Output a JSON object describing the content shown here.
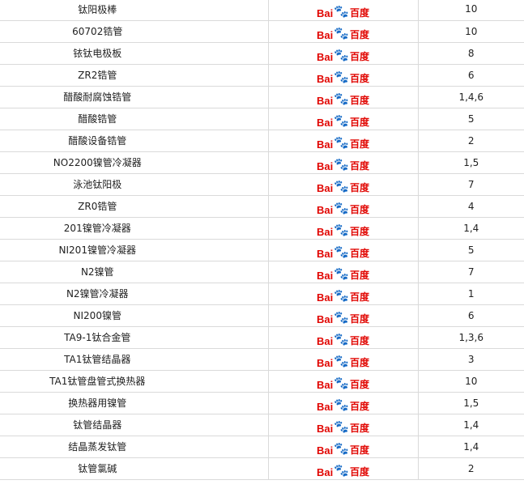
{
  "logo": {
    "text_latin": "Bai",
    "text_cn": "百度",
    "icon": "baidu-paw-icon",
    "colors": {
      "red": "#e10602",
      "blue": "#2932e1"
    }
  },
  "rows": [
    {
      "name": "钛阳极棒",
      "value": "10"
    },
    {
      "name": "60702锆管",
      "value": "10"
    },
    {
      "name": "铱钛电极板",
      "value": "8"
    },
    {
      "name": "ZR2锆管",
      "value": "6"
    },
    {
      "name": "醋酸耐腐蚀锆管",
      "value": "1,4,6"
    },
    {
      "name": "醋酸锆管",
      "value": "5"
    },
    {
      "name": "醋酸设备锆管",
      "value": "2"
    },
    {
      "name": "NO2200镍管冷凝器",
      "value": "1,5"
    },
    {
      "name": "泳池钛阳极",
      "value": "7"
    },
    {
      "name": "ZR0锆管",
      "value": "4"
    },
    {
      "name": "201镍管冷凝器",
      "value": "1,4"
    },
    {
      "name": "NI201镍管冷凝器",
      "value": "5"
    },
    {
      "name": "N2镍管",
      "value": "7"
    },
    {
      "name": "N2镍管冷凝器",
      "value": "1"
    },
    {
      "name": "NI200镍管",
      "value": "6"
    },
    {
      "name": "TA9-1钛合金管",
      "value": "1,3,6"
    },
    {
      "name": "TA1钛管结晶器",
      "value": "3"
    },
    {
      "name": "TA1钛管盘管式换热器",
      "value": "10"
    },
    {
      "name": "换热器用镍管",
      "value": "1,5"
    },
    {
      "name": "钛管结晶器",
      "value": "1,4"
    },
    {
      "name": "结晶蒸发钛管",
      "value": "1,4"
    },
    {
      "name": "钛管氯碱",
      "value": "2"
    }
  ]
}
